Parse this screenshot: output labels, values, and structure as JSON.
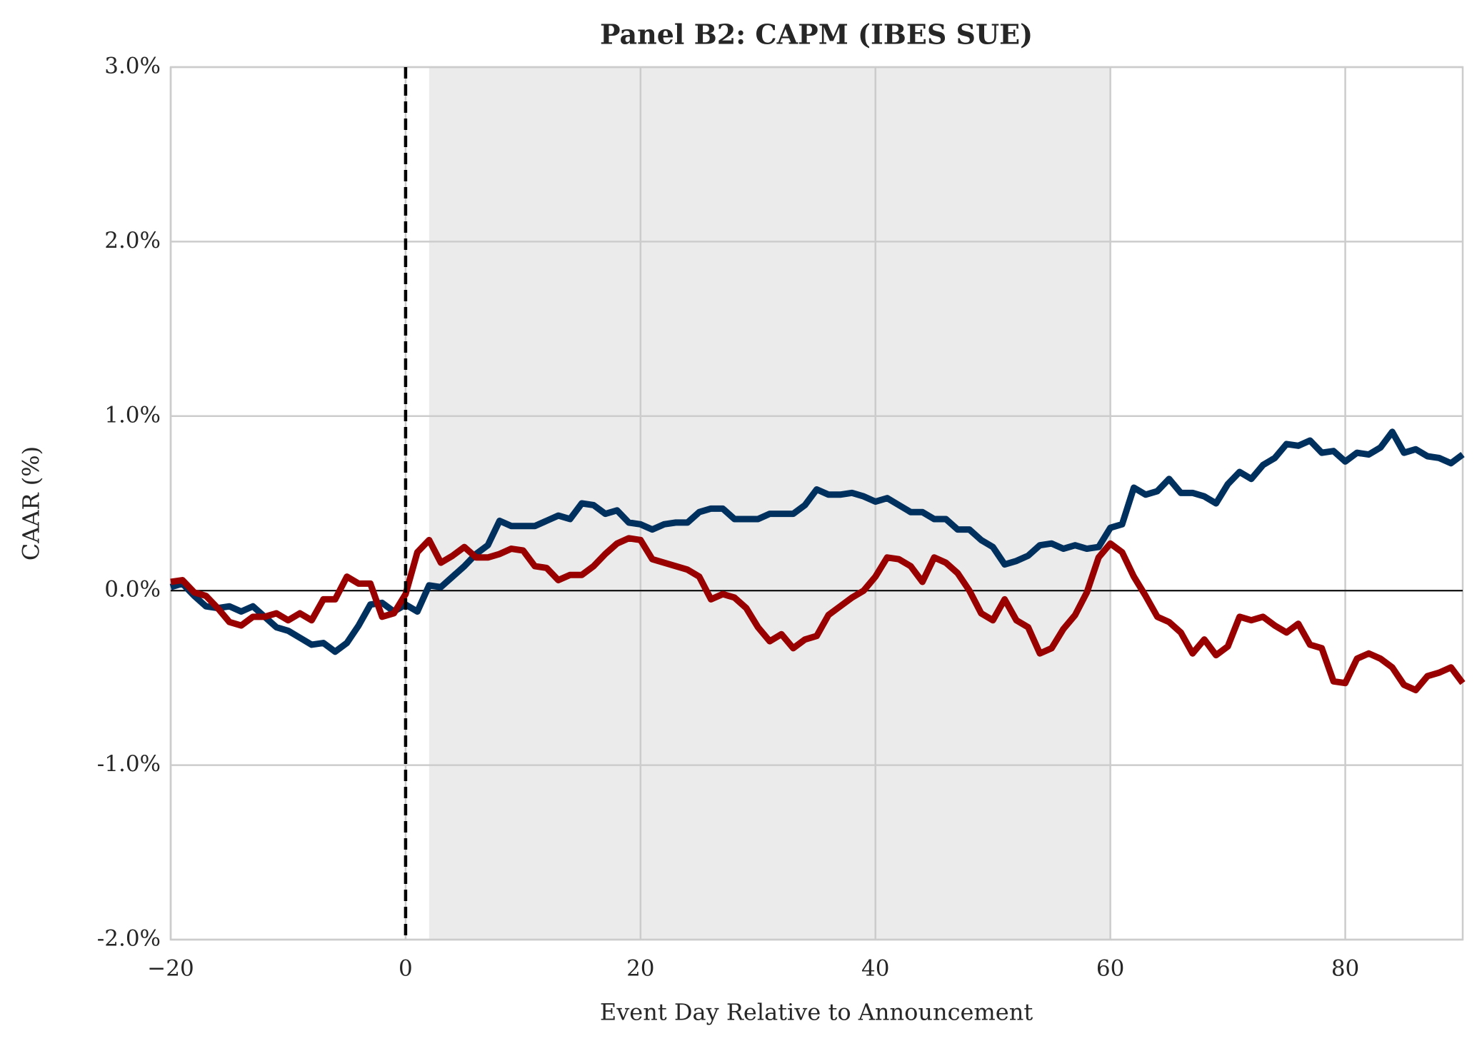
{
  "chart_data": {
    "type": "line",
    "title": "Panel B2: CAPM (IBES SUE)",
    "xlabel": "Event Day Relative to Announcement",
    "ylabel": "CAAR (%)",
    "x": [
      -20,
      -19,
      -18,
      -17,
      -16,
      -15,
      -14,
      -13,
      -12,
      -11,
      -10,
      -9,
      -8,
      -7,
      -6,
      -5,
      -4,
      -3,
      -2,
      -1,
      0,
      1,
      2,
      3,
      4,
      5,
      6,
      7,
      8,
      9,
      10,
      11,
      12,
      13,
      14,
      15,
      16,
      17,
      18,
      19,
      20,
      21,
      22,
      23,
      24,
      25,
      26,
      27,
      28,
      29,
      30,
      31,
      32,
      33,
      34,
      35,
      36,
      37,
      38,
      39,
      40,
      41,
      42,
      43,
      44,
      45,
      46,
      47,
      48,
      49,
      50,
      51,
      52,
      53,
      54,
      55,
      56,
      57,
      58,
      59,
      60,
      61,
      62,
      63,
      64,
      65,
      66,
      67,
      68,
      69,
      70,
      71,
      72,
      73,
      74,
      75,
      76,
      77,
      78,
      79,
      80,
      81,
      82,
      83,
      84,
      85,
      86,
      87,
      88,
      89,
      90
    ],
    "series": [
      {
        "color": "#00305e",
        "values": [
          0.02,
          0.04,
          -0.03,
          -0.09,
          -0.1,
          -0.09,
          -0.12,
          -0.09,
          -0.15,
          -0.21,
          -0.23,
          -0.27,
          -0.31,
          -0.3,
          -0.35,
          -0.3,
          -0.2,
          -0.08,
          -0.07,
          -0.12,
          -0.08,
          -0.12,
          0.03,
          0.02,
          0.08,
          0.14,
          0.21,
          0.26,
          0.4,
          0.37,
          0.37,
          0.37,
          0.4,
          0.43,
          0.41,
          0.5,
          0.49,
          0.44,
          0.46,
          0.39,
          0.38,
          0.35,
          0.38,
          0.39,
          0.39,
          0.45,
          0.47,
          0.47,
          0.41,
          0.41,
          0.41,
          0.44,
          0.44,
          0.44,
          0.49,
          0.58,
          0.55,
          0.55,
          0.56,
          0.54,
          0.51,
          0.53,
          0.49,
          0.45,
          0.45,
          0.41,
          0.41,
          0.35,
          0.35,
          0.29,
          0.25,
          0.15,
          0.17,
          0.2,
          0.26,
          0.27,
          0.24,
          0.26,
          0.24,
          0.25,
          0.36,
          0.38,
          0.59,
          0.55,
          0.57,
          0.64,
          0.56,
          0.56,
          0.54,
          0.5,
          0.61,
          0.68,
          0.64,
          0.72,
          0.76,
          0.84,
          0.83,
          0.86,
          0.79,
          0.8,
          0.74,
          0.79,
          0.78,
          0.82,
          0.91,
          0.79,
          0.81,
          0.77,
          0.76,
          0.73,
          0.78
        ]
      },
      {
        "color": "#990000",
        "values": [
          0.05,
          0.06,
          -0.01,
          -0.03,
          -0.1,
          -0.18,
          -0.2,
          -0.15,
          -0.15,
          -0.13,
          -0.17,
          -0.13,
          -0.17,
          -0.05,
          -0.05,
          0.08,
          0.04,
          0.04,
          -0.15,
          -0.13,
          -0.02,
          0.22,
          0.29,
          0.16,
          0.2,
          0.25,
          0.19,
          0.19,
          0.21,
          0.24,
          0.23,
          0.14,
          0.13,
          0.06,
          0.09,
          0.09,
          0.14,
          0.21,
          0.27,
          0.3,
          0.29,
          0.18,
          0.16,
          0.14,
          0.12,
          0.08,
          -0.05,
          -0.02,
          -0.04,
          -0.1,
          -0.21,
          -0.29,
          -0.25,
          -0.33,
          -0.28,
          -0.26,
          -0.14,
          -0.09,
          -0.04,
          0.0,
          0.08,
          0.19,
          0.18,
          0.14,
          0.05,
          0.19,
          0.16,
          0.1,
          0.0,
          -0.13,
          -0.17,
          -0.05,
          -0.17,
          -0.21,
          -0.36,
          -0.33,
          -0.22,
          -0.14,
          -0.01,
          0.19,
          0.27,
          0.22,
          0.08,
          -0.03,
          -0.15,
          -0.18,
          -0.24,
          -0.36,
          -0.28,
          -0.37,
          -0.32,
          -0.15,
          -0.17,
          -0.15,
          -0.2,
          -0.24,
          -0.19,
          -0.31,
          -0.33,
          -0.52,
          -0.53,
          -0.39,
          -0.36,
          -0.39,
          -0.44,
          -0.54,
          -0.57,
          -0.49,
          -0.47,
          -0.44,
          -0.53
        ]
      }
    ],
    "xlim": [
      -20,
      90
    ],
    "ylim": [
      -2,
      3
    ],
    "xticks": [
      {
        "value": -20,
        "label": "−20"
      },
      0,
      20,
      40,
      60,
      80
    ],
    "yticks": [
      {
        "value": -2,
        "label": "-2.0%"
      },
      {
        "value": -1,
        "label": "-1.0%"
      },
      {
        "value": 0,
        "label": "0.0%"
      },
      {
        "value": 1,
        "label": "1.0%"
      },
      {
        "value": 2,
        "label": "2.0%"
      },
      {
        "value": 3,
        "label": "3.0%"
      }
    ],
    "grid": true,
    "shaded_span": [
      2,
      60
    ],
    "event_line": 0,
    "zero_line": 0
  }
}
